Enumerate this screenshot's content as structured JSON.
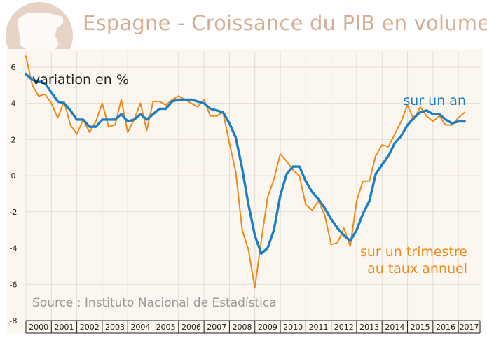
{
  "title": "Espagne - Croissance du PIB en volume",
  "colors": {
    "plot_background": "#fbf6ef",
    "annual_series": "#1a7fc4",
    "quarterly_series": "#f08a16",
    "logo": "#e7d3c6",
    "title": "#d7ad95",
    "source_text": "#9a9a9a"
  },
  "chart_data": {
    "type": "line",
    "title": "Espagne - Croissance du PIB en volume",
    "ylabel": "variation en %",
    "xlabel": "",
    "ylim": [
      -8,
      7
    ],
    "xlim": [
      2000,
      2017.85
    ],
    "yticks": [
      6,
      4,
      2,
      0,
      -2,
      -4,
      -6,
      -8
    ],
    "ytick_labels": [
      "6",
      "4",
      "2",
      "0",
      "-2",
      "-4",
      "-6",
      "-8"
    ],
    "categories": [
      "2000",
      "2001",
      "2002",
      "2003",
      "2004",
      "2005",
      "2006",
      "2007",
      "2008",
      "2009",
      "2010",
      "2011",
      "2012",
      "2013",
      "2014",
      "2015",
      "2016",
      "2017"
    ],
    "grid": true,
    "source": "Source : Instituto Nacional de Estadística",
    "series": [
      {
        "name": "sur un an",
        "color": "#1a7fc4",
        "label_lines": [
          "sur un an"
        ],
        "x": [
          2000.0,
          2000.25,
          2000.5,
          2000.75,
          2001.0,
          2001.25,
          2001.5,
          2001.75,
          2002.0,
          2002.25,
          2002.5,
          2002.75,
          2003.0,
          2003.25,
          2003.5,
          2003.75,
          2004.0,
          2004.25,
          2004.5,
          2004.75,
          2005.0,
          2005.25,
          2005.5,
          2005.75,
          2006.0,
          2006.25,
          2006.5,
          2006.75,
          2007.0,
          2007.25,
          2007.5,
          2007.75,
          2008.0,
          2008.25,
          2008.5,
          2008.75,
          2009.0,
          2009.25,
          2009.5,
          2009.75,
          2010.0,
          2010.25,
          2010.5,
          2010.75,
          2011.0,
          2011.25,
          2011.5,
          2011.75,
          2012.0,
          2012.25,
          2012.5,
          2012.75,
          2013.0,
          2013.25,
          2013.5,
          2013.75,
          2014.0,
          2014.25,
          2014.5,
          2014.75,
          2015.0,
          2015.25,
          2015.5,
          2015.75,
          2016.0,
          2016.25,
          2016.5,
          2016.75,
          2017.0,
          2017.25
        ],
        "values": [
          5.6,
          5.3,
          5.2,
          5.1,
          4.6,
          4.1,
          4.0,
          3.6,
          3.1,
          3.1,
          2.7,
          2.7,
          3.1,
          3.1,
          3.1,
          3.4,
          3.0,
          3.1,
          3.4,
          3.1,
          3.4,
          3.7,
          3.7,
          4.1,
          4.2,
          4.2,
          4.2,
          4.1,
          4.0,
          3.7,
          3.6,
          3.5,
          2.9,
          2.1,
          0.4,
          -1.6,
          -3.3,
          -4.3,
          -4.0,
          -3.0,
          -1.1,
          0.1,
          0.5,
          0.5,
          -0.3,
          -0.9,
          -1.3,
          -1.8,
          -2.4,
          -2.9,
          -3.3,
          -3.6,
          -3.0,
          -2.1,
          -1.4,
          0.1,
          0.6,
          1.1,
          1.8,
          2.2,
          2.8,
          3.2,
          3.5,
          3.6,
          3.4,
          3.4,
          3.1,
          2.9,
          3.0,
          3.0
        ]
      },
      {
        "name": "sur un trimestre au taux annuel",
        "color": "#f08a16",
        "label_lines": [
          "sur un trimestre",
          "au taux annuel"
        ],
        "x": [
          2000.0,
          2000.25,
          2000.5,
          2000.75,
          2001.0,
          2001.25,
          2001.5,
          2001.75,
          2002.0,
          2002.25,
          2002.5,
          2002.75,
          2003.0,
          2003.25,
          2003.5,
          2003.75,
          2004.0,
          2004.25,
          2004.5,
          2004.75,
          2005.0,
          2005.25,
          2005.5,
          2005.75,
          2006.0,
          2006.25,
          2006.5,
          2006.75,
          2007.0,
          2007.25,
          2007.5,
          2007.75,
          2008.0,
          2008.25,
          2008.5,
          2008.75,
          2009.0,
          2009.25,
          2009.5,
          2009.75,
          2010.0,
          2010.25,
          2010.5,
          2010.75,
          2011.0,
          2011.25,
          2011.5,
          2011.75,
          2012.0,
          2012.25,
          2012.5,
          2012.75,
          2013.0,
          2013.25,
          2013.5,
          2013.75,
          2014.0,
          2014.25,
          2014.5,
          2014.75,
          2015.0,
          2015.25,
          2015.5,
          2015.75,
          2016.0,
          2016.25,
          2016.5,
          2016.75,
          2017.0,
          2017.25
        ],
        "values": [
          6.6,
          5.0,
          4.4,
          4.5,
          4.0,
          3.2,
          4.1,
          2.8,
          2.3,
          3.1,
          2.4,
          3.0,
          4.0,
          2.7,
          2.8,
          4.2,
          2.4,
          3.1,
          4.0,
          2.5,
          4.1,
          4.1,
          3.9,
          4.2,
          4.4,
          4.2,
          4.0,
          3.8,
          4.2,
          3.3,
          3.3,
          3.5,
          1.8,
          0.2,
          -3.0,
          -4.1,
          -6.2,
          -3.6,
          -1.2,
          -0.2,
          1.2,
          0.8,
          0.3,
          0.0,
          -1.6,
          -1.9,
          -1.4,
          -2.2,
          -3.8,
          -3.7,
          -2.9,
          -3.9,
          -1.4,
          -0.3,
          -0.3,
          1.1,
          1.7,
          1.6,
          2.3,
          3.0,
          3.9,
          3.1,
          3.8,
          3.3,
          3.0,
          3.3,
          2.8,
          2.8,
          3.2,
          3.5
        ]
      }
    ]
  }
}
